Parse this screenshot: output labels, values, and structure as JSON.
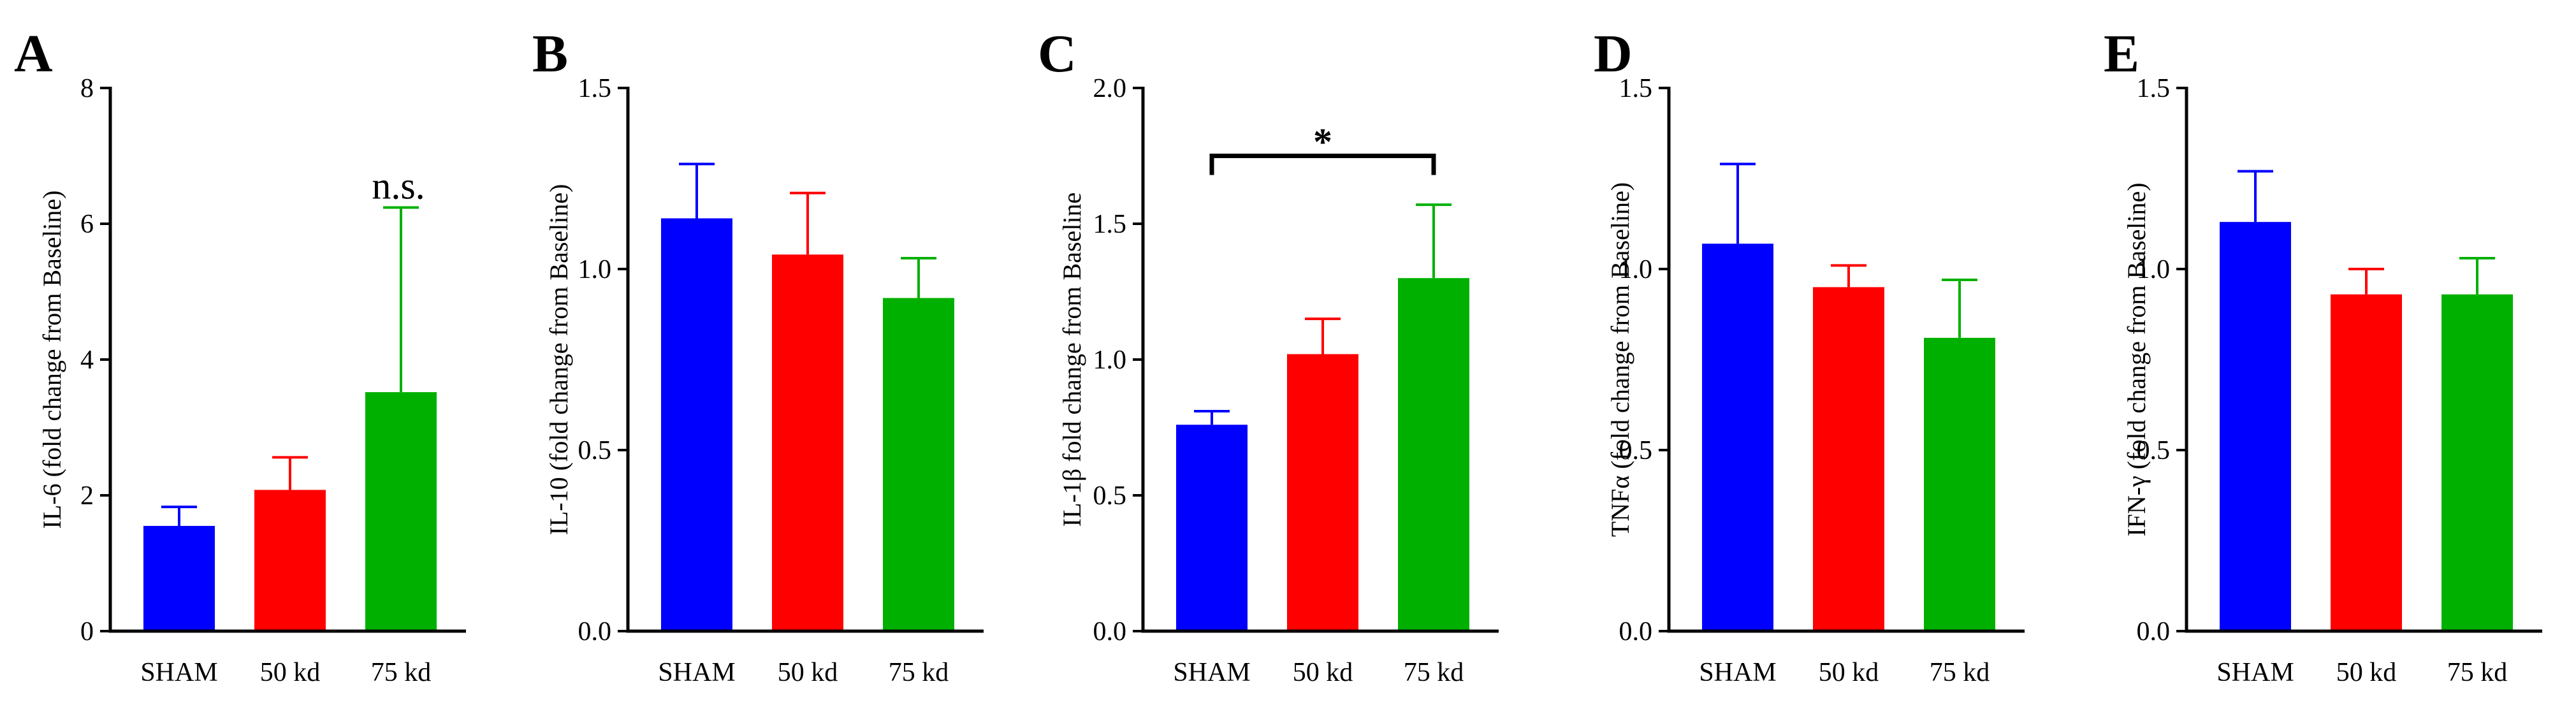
{
  "chart_data": [
    {
      "panel": "A",
      "type": "bar",
      "ylabel": "IL-6 (fold change from Baseline)",
      "categories": [
        "SHAM",
        "50 kd",
        "75 kd"
      ],
      "values": [
        1.55,
        2.08,
        3.52
      ],
      "errors": [
        0.28,
        0.48,
        2.72
      ],
      "ylim": [
        0,
        8
      ],
      "yticks": [
        "0",
        "2",
        "4",
        "6",
        "8"
      ],
      "colors": [
        "#0000ff",
        "#ff0000",
        "#00b000"
      ],
      "annotation": {
        "text": "n.s.",
        "category": "75 kd"
      }
    },
    {
      "panel": "B",
      "type": "bar",
      "ylabel": "IL-10 (fold change from Baseline)",
      "categories": [
        "SHAM",
        "50 kd",
        "75 kd"
      ],
      "values": [
        1.14,
        1.04,
        0.92
      ],
      "errors": [
        0.15,
        0.17,
        0.11
      ],
      "ylim": [
        0,
        1.5
      ],
      "yticks": [
        "0.0",
        "0.5",
        "1.0",
        "1.5"
      ],
      "colors": [
        "#0000ff",
        "#ff0000",
        "#00b000"
      ]
    },
    {
      "panel": "C",
      "type": "bar",
      "ylabel": "IL-1β fold change from Baseline",
      "categories": [
        "SHAM",
        "50 kd",
        "75 kd"
      ],
      "values": [
        0.76,
        1.02,
        1.3
      ],
      "errors": [
        0.05,
        0.13,
        0.27
      ],
      "ylim": [
        0,
        2.0
      ],
      "yticks": [
        "0.0",
        "0.5",
        "1.0",
        "1.5",
        "2.0"
      ],
      "colors": [
        "#0000ff",
        "#ff0000",
        "#00b000"
      ],
      "significance": {
        "text": "*",
        "from": "SHAM",
        "to": "75 kd",
        "y": 1.75
      }
    },
    {
      "panel": "D",
      "type": "bar",
      "ylabel": "TNFα (fold change from Baseline)",
      "categories": [
        "SHAM",
        "50 kd",
        "75 kd"
      ],
      "values": [
        1.07,
        0.95,
        0.81
      ],
      "errors": [
        0.22,
        0.06,
        0.16
      ],
      "ylim": [
        0,
        1.5
      ],
      "yticks": [
        "0.0",
        "0.5",
        "1.0",
        "1.5"
      ],
      "colors": [
        "#0000ff",
        "#ff0000",
        "#00b000"
      ]
    },
    {
      "panel": "E",
      "type": "bar",
      "ylabel": "IFN-γ (fold change from Baseline)",
      "categories": [
        "SHAM",
        "50 kd",
        "75 kd"
      ],
      "values": [
        1.13,
        0.93,
        0.93
      ],
      "errors": [
        0.14,
        0.07,
        0.1
      ],
      "ylim": [
        0,
        1.5
      ],
      "yticks": [
        "0.0",
        "0.5",
        "1.0",
        "1.5"
      ],
      "colors": [
        "#0000ff",
        "#ff0000",
        "#00b000"
      ]
    }
  ]
}
